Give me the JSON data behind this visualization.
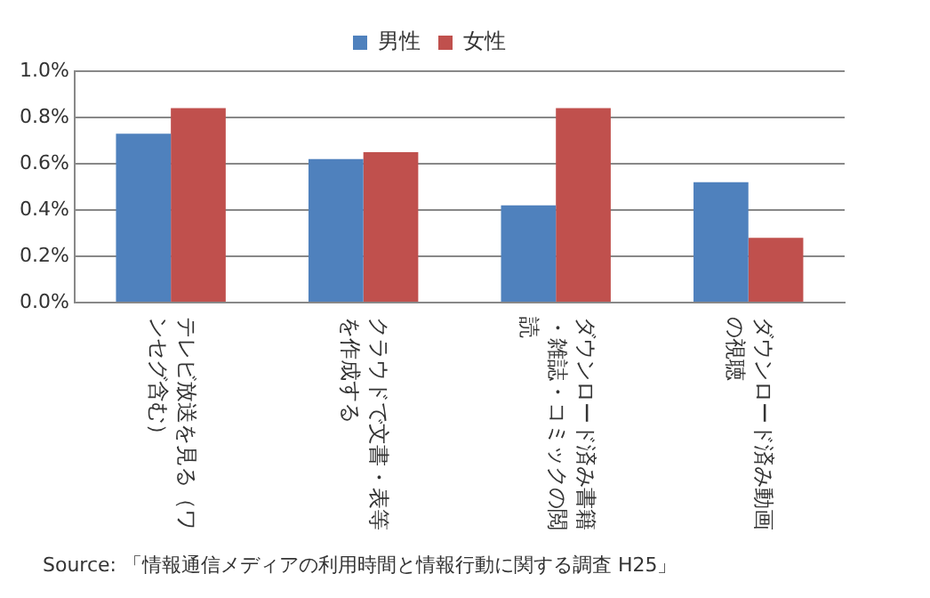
{
  "chart_data": {
    "type": "bar",
    "categories": [
      "テレビ放送を見る（ワンセグ含む）",
      "クラウドで文書・表等を作成する",
      "ダウンロード済み書籍・雑誌・コミックの閲読",
      "ダウンロード済み動画の視聴"
    ],
    "series": [
      {
        "name": "男性",
        "color": "#4f81bd",
        "values": [
          0.73,
          0.62,
          0.42,
          0.52
        ]
      },
      {
        "name": "女性",
        "color": "#c0504d",
        "values": [
          0.84,
          0.65,
          0.84,
          0.28
        ]
      }
    ],
    "ylim": [
      0,
      1.0
    ],
    "yticks": [
      {
        "value": 0,
        "label": "0.0%"
      },
      {
        "value": 0.2,
        "label": "0.2%"
      },
      {
        "value": 0.4,
        "label": "0.4%"
      },
      {
        "value": 0.6,
        "label": "0.6%"
      },
      {
        "value": 0.8,
        "label": "0.8%"
      },
      {
        "value": 1.0,
        "label": "1.0%"
      }
    ],
    "grid": "y",
    "legend": "top",
    "annotations": [
      "Source: 「情報通信メディアの利用時間と情報行動に関する調査 H25」"
    ]
  }
}
